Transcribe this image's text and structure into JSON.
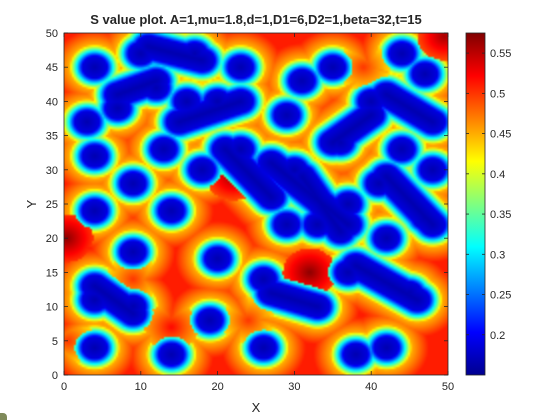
{
  "chart_data": {
    "type": "heatmap",
    "title": "S value plot. A=1,mu=1.8,d=1,D1=6,D2=1,beta=32,t=15",
    "xlabel": "X",
    "ylabel": "Y",
    "xlim": [
      0,
      50
    ],
    "ylim": [
      0,
      50
    ],
    "xticks": [
      0,
      10,
      20,
      30,
      40,
      50
    ],
    "yticks": [
      0,
      5,
      10,
      15,
      20,
      25,
      30,
      35,
      40,
      45,
      50
    ],
    "colormap": "jet",
    "colorbar": {
      "range": [
        0.15,
        0.575
      ],
      "ticks": [
        0.2,
        0.25,
        0.3,
        0.35,
        0.4,
        0.45,
        0.5,
        0.55
      ],
      "tick_labels": [
        "0.2",
        "0.25",
        "0.3",
        "0.35",
        "0.4",
        "0.45",
        "0.5",
        "0.55"
      ]
    },
    "low_spots": [
      [
        4,
        45
      ],
      [
        7,
        39
      ],
      [
        3,
        37
      ],
      [
        4,
        32
      ],
      [
        4,
        24
      ],
      [
        4,
        11
      ],
      [
        4,
        4
      ],
      [
        10,
        47
      ],
      [
        12,
        42
      ],
      [
        9,
        28
      ],
      [
        9,
        18
      ],
      [
        9,
        10
      ],
      [
        14,
        3
      ],
      [
        13,
        33
      ],
      [
        14,
        24
      ],
      [
        16,
        40
      ],
      [
        17,
        47
      ],
      [
        20,
        40
      ],
      [
        18,
        30
      ],
      [
        20,
        17
      ],
      [
        19,
        8
      ],
      [
        23,
        45
      ],
      [
        23,
        33
      ],
      [
        27,
        26
      ],
      [
        26,
        14
      ],
      [
        26,
        4
      ],
      [
        29,
        38
      ],
      [
        31,
        43
      ],
      [
        30,
        30
      ],
      [
        29,
        22
      ],
      [
        33,
        22
      ],
      [
        33,
        10
      ],
      [
        38,
        3
      ],
      [
        35,
        45
      ],
      [
        36,
        34
      ],
      [
        37,
        25
      ],
      [
        37,
        15
      ],
      [
        42,
        4
      ],
      [
        40,
        40
      ],
      [
        41,
        28
      ],
      [
        42,
        20
      ],
      [
        44,
        33
      ],
      [
        45,
        12
      ],
      [
        47,
        44
      ],
      [
        47,
        23
      ],
      [
        48,
        30
      ],
      [
        44,
        47
      ]
    ],
    "low_ridges": [
      [
        [
          11,
          48
        ],
        [
          18,
          46
        ]
      ],
      [
        [
          15,
          37
        ],
        [
          23,
          40
        ]
      ],
      [
        [
          21,
          33
        ],
        [
          27,
          26
        ]
      ],
      [
        [
          27,
          31
        ],
        [
          37,
          22
        ]
      ],
      [
        [
          31,
          29
        ],
        [
          36,
          21
        ]
      ],
      [
        [
          27,
          12
        ],
        [
          33,
          10
        ]
      ],
      [
        [
          42,
          29
        ],
        [
          48,
          22
        ]
      ],
      [
        [
          38,
          16
        ],
        [
          46,
          11
        ]
      ],
      [
        [
          42,
          41
        ],
        [
          48,
          37
        ]
      ],
      [
        [
          35,
          34
        ],
        [
          40,
          38
        ]
      ],
      [
        [
          4,
          13
        ],
        [
          9,
          9
        ]
      ],
      [
        [
          7,
          41
        ],
        [
          12,
          43
        ]
      ]
    ],
    "high_spots": [
      [
        0.3,
        20,
        0.57
      ],
      [
        22,
        29,
        0.56
      ],
      [
        32,
        15,
        0.57
      ],
      [
        49.5,
        49.5,
        0.56
      ],
      [
        9,
        14,
        0.5
      ],
      [
        14,
        7,
        0.52
      ],
      [
        24,
        8,
        0.5
      ],
      [
        39,
        45,
        0.5
      ],
      [
        0.5,
        5,
        0.5
      ]
    ]
  }
}
